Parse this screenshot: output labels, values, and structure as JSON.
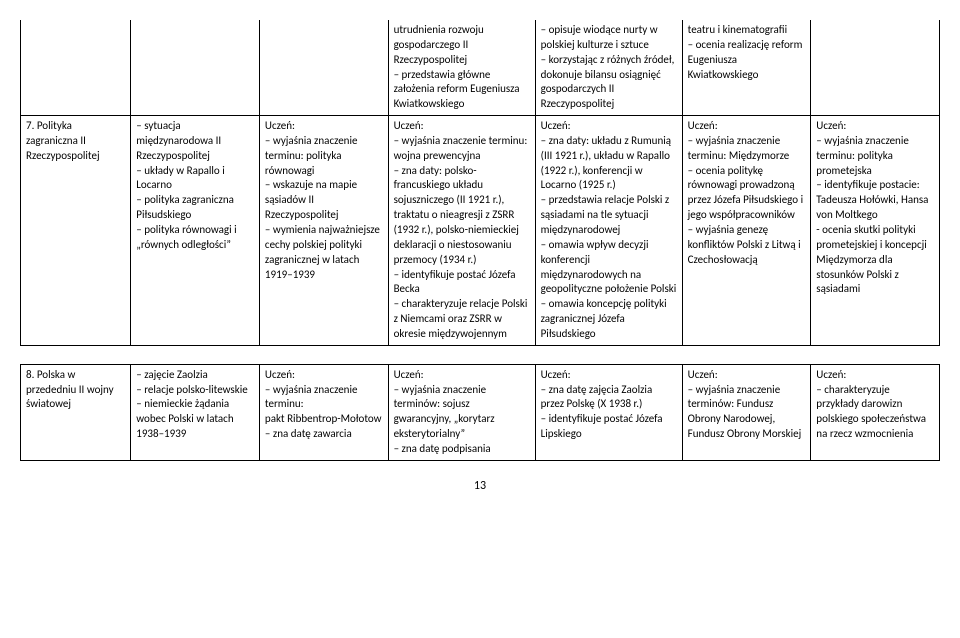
{
  "table1": {
    "row0": {
      "c1": "",
      "c2": "",
      "c3": "",
      "c4": "utrudnienia rozwoju gospodarczego II Rzeczypospolitej\n– przedstawia główne założenia reform Eugeniusza Kwiatkowskiego",
      "c5": "– opisuje wiodące nurty w polskiej kulturze i sztuce\n– korzystając z różnych źródeł, dokonuje bilansu osiągnięć gospodarczych II Rzeczypospolitej",
      "c6": "teatru i kinematografii\n– ocenia realizację reform Eugeniusza Kwiatkowskiego",
      "c7": ""
    },
    "row1": {
      "c1": "7. Polityka zagraniczna II Rzeczypospolitej",
      "c2": "– sytuacja międzynarodowa II Rzeczypospolitej\n– układy w Rapallo i Locarno\n– polityka zagraniczna Piłsudskiego\n– polityka równowagi i „równych odległości”",
      "c3": "Uczeń:\n– wyjaśnia znaczenie terminu: polityka równowagi\n– wskazuje na mapie sąsiadów II Rzeczypospolitej\n– wymienia najważniejsze cechy polskiej polityki zagranicznej w latach 1919–1939",
      "c4": "Uczeń:\n– wyjaśnia znaczenie terminu:\nwojna prewencyjna\n– zna daty: polsko-francuskiego układu sojuszniczego (II 1921 r.), traktatu o nieagresji z ZSRR (1932 r.), polsko-niemieckiej deklaracji o niestosowaniu przemocy (1934 r.)\n– identyfikuje postać Józefa Becka\n– charakteryzuje relacje Polski z Niemcami oraz ZSRR w okresie międzywojennym",
      "c5": "Uczeń:\n– zna daty: układu z Rumunią (III 1921 r.), układu w Rapallo (1922 r.), konferencji w Locarno (1925 r.)\n– przedstawia relacje Polski z sąsiadami na tle sytuacji międzynarodowej\n– omawia wpływ decyzji konferencji międzynarodowych na geopolityczne położenie Polski\n– omawia koncepcję polityki zagranicznej Józefa Piłsudskiego",
      "c6": "Uczeń:\n– wyjaśnia znaczenie terminu: Międzymorze\n– ocenia politykę równowagi prowadzoną przez Józefa Piłsudskiego i jego współpracowników\n– wyjaśnia genezę konfliktów Polski z Litwą i Czechosłowacją",
      "c7": "Uczeń:\n– wyjaśnia znaczenie terminu: polityka prometejska\n– identyfikuje postacie: Tadeusza Hołówki, Hansa von Moltkego\n- ocenia skutki polityki prometejskiej i koncepcji Międzymorza dla stosunków Polski z sąsiadami"
    }
  },
  "table2": {
    "row0": {
      "c1": "8. Polska w przededniu II wojny światowej",
      "c2": "– zajęcie Zaolzia\n– relacje polsko-litewskie\n– niemieckie żądania wobec Polski w latach 1938–1939",
      "c3": "Uczeń:\n– wyjaśnia znaczenie terminu:\npakt Ribbentrop-Mołotow\n– zna datę zawarcia",
      "c4": "Uczeń:\n– wyjaśnia znaczenie terminów: sojusz gwarancyjny, „korytarz eksterytorialny”\n– zna datę podpisania",
      "c5": "Uczeń:\n– zna datę zajęcia Zaolzia przez Polskę (X 1938 r.)\n– identyfikuje postać Józefa Lipskiego",
      "c6": "Uczeń:\n– wyjaśnia znaczenie terminów: Fundusz Obrony Narodowej, Fundusz Obrony Morskiej",
      "c7": "Uczeń:\n– charakteryzuje przykłady darowizn polskiego społeczeństwa na rzecz wzmocnienia"
    }
  },
  "pageNumber": "13"
}
